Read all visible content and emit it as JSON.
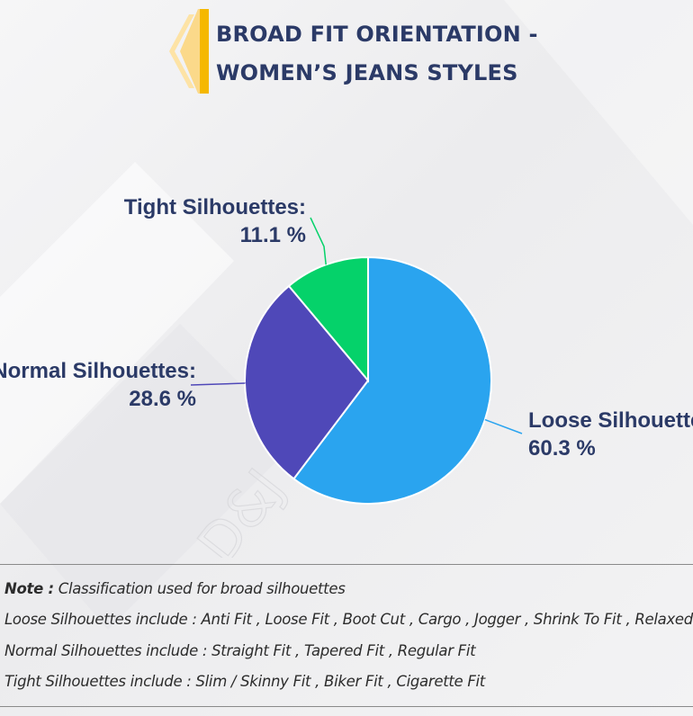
{
  "header": {
    "title_line1": "BROAD FIT ORIENTATION -",
    "title_line2": "WOMEN’S JEANS STYLES",
    "accent_color": "#f5b800"
  },
  "chart_data": {
    "type": "pie",
    "title": "BROAD FIT ORIENTATION - WOMEN’S JEANS STYLES",
    "slices": [
      {
        "name": "Loose Silhouettes:",
        "value": 60.3,
        "label": "60.3 %",
        "color": "#2aa4ef"
      },
      {
        "name": "Normal Silhouettes:",
        "value": 28.6,
        "label": "28.6 %",
        "color": "#4f48b8"
      },
      {
        "name": "Tight Silhouettes:",
        "value": 11.1,
        "label": "11.1 %",
        "color": "#05d26a"
      }
    ]
  },
  "watermark": "D&J Reports",
  "notes": {
    "note_label": "Note :",
    "note_text": " Classification used for broad silhouettes",
    "loose": "Loose Silhouettes include : Anti Fit , Loose Fit , Boot Cut , Cargo , Jogger , Shrink To Fit , Relaxed Fit",
    "normal": "Normal Silhouettes include : Straight Fit , Tapered Fit , Regular Fit",
    "tight": "Tight Silhouettes include : Slim / Skinny Fit , Biker Fit , Cigarette Fit"
  }
}
